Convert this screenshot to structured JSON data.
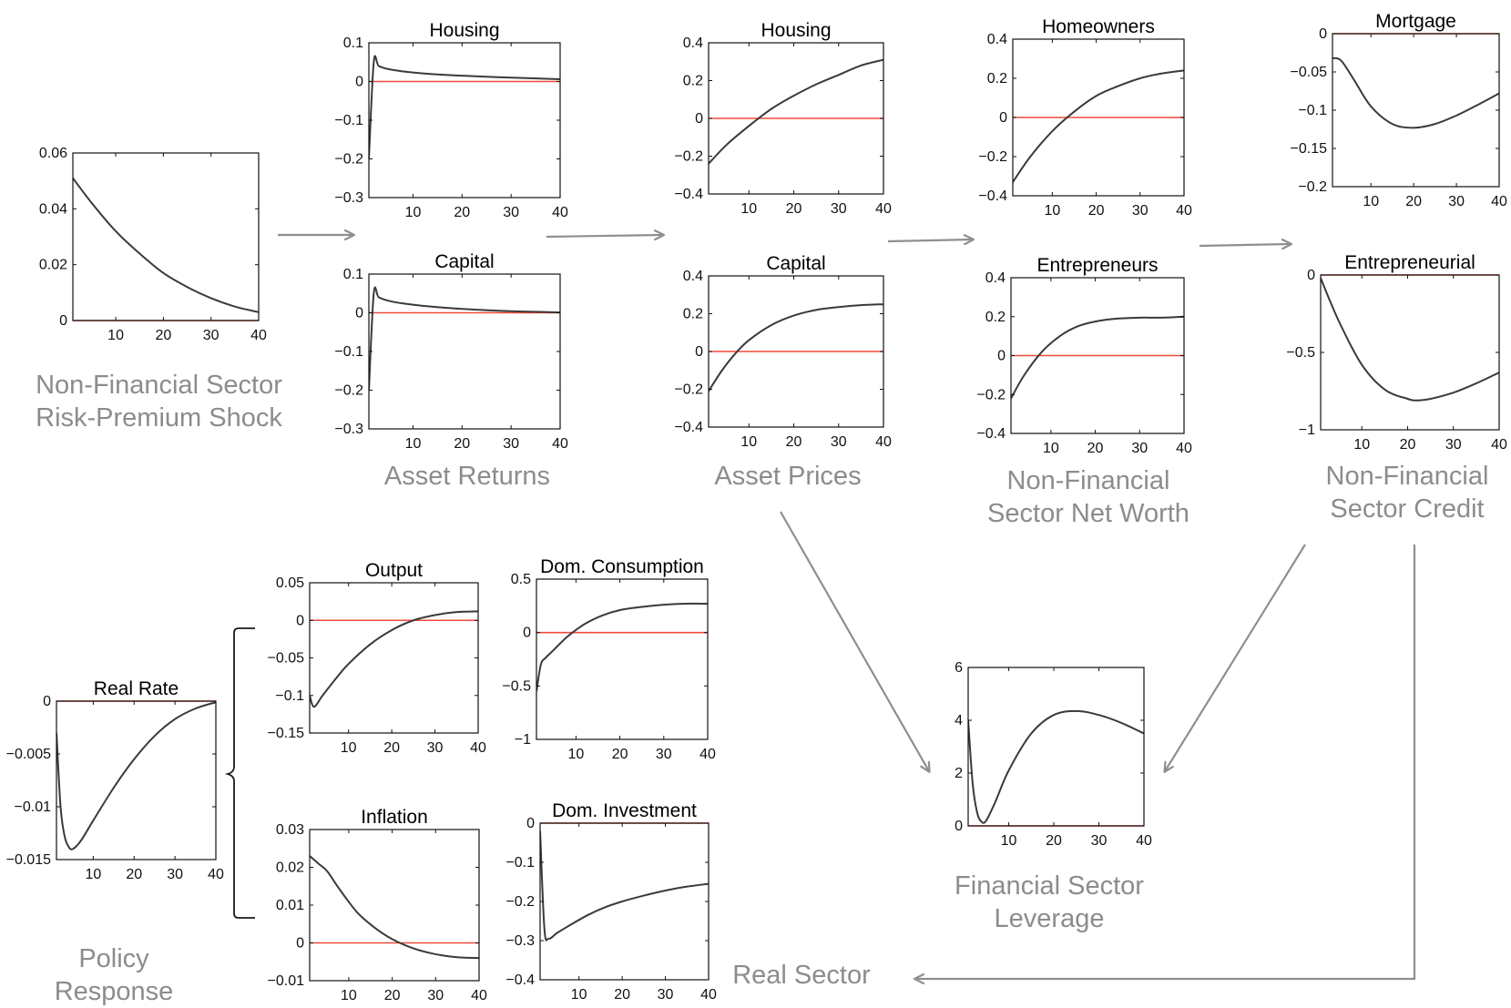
{
  "colors": {
    "curve": "#3a3a3a",
    "zero_line": "#f04a3a",
    "arrow": "#8f8f8f",
    "group_label": "#8c8c8c"
  },
  "group_labels": {
    "shock": [
      "Non-Financial Sector",
      "Risk-Premium Shock"
    ],
    "asset_returns": [
      "Asset Returns"
    ],
    "asset_prices": [
      "Asset Prices"
    ],
    "net_worth": [
      "Non-Financial",
      "Sector Net Worth"
    ],
    "credit": [
      "Non-Financial",
      "Sector Credit"
    ],
    "leverage": [
      "Financial Sector",
      "Leverage"
    ],
    "policy": [
      "Policy",
      "Response"
    ],
    "real_sector": [
      "Real Sector"
    ]
  },
  "chart_data": [
    {
      "id": "shock",
      "type": "line",
      "title": "",
      "xlim": [
        1,
        40
      ],
      "ylim": [
        0,
        0.06
      ],
      "xticks": [
        10,
        20,
        30,
        40
      ],
      "yticks": [
        0,
        0.02,
        0.04,
        0.06
      ],
      "yticklabels": [
        "0",
        "0.02",
        "0.04",
        "0.06"
      ],
      "series": [
        {
          "x": [
            1,
            5,
            10,
            15,
            20,
            25,
            30,
            35,
            40
          ],
          "y": [
            0.051,
            0.042,
            0.032,
            0.024,
            0.017,
            0.012,
            0.008,
            0.005,
            0.003
          ]
        }
      ]
    },
    {
      "id": "ret_housing",
      "type": "line",
      "title": "Housing",
      "xlim": [
        1,
        40
      ],
      "ylim": [
        -0.3,
        0.1
      ],
      "xticks": [
        10,
        20,
        30,
        40
      ],
      "yticks": [
        -0.3,
        -0.2,
        -0.1,
        0,
        0.1
      ],
      "yticklabels": [
        "−0.3",
        "−0.2",
        "−0.1",
        "0",
        "0.1"
      ],
      "series": [
        {
          "x": [
            1,
            2,
            3,
            5,
            8,
            12,
            20,
            30,
            40
          ],
          "y": [
            -0.2,
            0.05,
            0.04,
            0.032,
            0.026,
            0.021,
            0.015,
            0.01,
            0.006
          ]
        }
      ]
    },
    {
      "id": "ret_capital",
      "type": "line",
      "title": "Capital",
      "xlim": [
        1,
        40
      ],
      "ylim": [
        -0.3,
        0.1
      ],
      "xticks": [
        10,
        20,
        30,
        40
      ],
      "yticks": [
        -0.3,
        -0.2,
        -0.1,
        0,
        0.1
      ],
      "yticklabels": [
        "−0.3",
        "−0.2",
        "−0.1",
        "0",
        "0.1"
      ],
      "series": [
        {
          "x": [
            1,
            2,
            3,
            5,
            8,
            12,
            20,
            30,
            40
          ],
          "y": [
            -0.2,
            0.05,
            0.04,
            0.031,
            0.024,
            0.018,
            0.01,
            0.004,
            0.001
          ]
        }
      ]
    },
    {
      "id": "price_housing",
      "type": "line",
      "title": "Housing",
      "xlim": [
        1,
        40
      ],
      "ylim": [
        -0.4,
        0.4
      ],
      "xticks": [
        10,
        20,
        30,
        40
      ],
      "yticks": [
        -0.4,
        -0.2,
        0,
        0.2,
        0.4
      ],
      "yticklabels": [
        "−0.4",
        "−0.2",
        "0",
        "0.2",
        "0.4"
      ],
      "series": [
        {
          "x": [
            1,
            5,
            10,
            15,
            20,
            25,
            30,
            35,
            40
          ],
          "y": [
            -0.24,
            -0.14,
            -0.04,
            0.05,
            0.12,
            0.18,
            0.23,
            0.28,
            0.31
          ]
        }
      ]
    },
    {
      "id": "price_capital",
      "type": "line",
      "title": "Capital",
      "xlim": [
        1,
        40
      ],
      "ylim": [
        -0.4,
        0.4
      ],
      "xticks": [
        10,
        20,
        30,
        40
      ],
      "yticks": [
        -0.4,
        -0.2,
        0,
        0.2,
        0.4
      ],
      "yticklabels": [
        "−0.4",
        "−0.2",
        "0",
        "0.2",
        "0.4"
      ],
      "series": [
        {
          "x": [
            1,
            4,
            7,
            10,
            15,
            20,
            25,
            30,
            35,
            40
          ],
          "y": [
            -0.21,
            -0.1,
            -0.01,
            0.06,
            0.14,
            0.19,
            0.22,
            0.235,
            0.245,
            0.25
          ]
        }
      ]
    },
    {
      "id": "nw_homeowners",
      "type": "line",
      "title": "Homeowners",
      "xlim": [
        1,
        40
      ],
      "ylim": [
        -0.4,
        0.4
      ],
      "xticks": [
        10,
        20,
        30,
        40
      ],
      "yticks": [
        -0.4,
        -0.2,
        0,
        0.2,
        0.4
      ],
      "yticklabels": [
        "−0.4",
        "−0.2",
        "0",
        "0.2",
        "0.4"
      ],
      "series": [
        {
          "x": [
            1,
            5,
            10,
            15,
            20,
            25,
            30,
            35,
            40
          ],
          "y": [
            -0.33,
            -0.2,
            -0.07,
            0.03,
            0.11,
            0.16,
            0.2,
            0.225,
            0.24
          ]
        }
      ]
    },
    {
      "id": "nw_entrepreneurs",
      "type": "line",
      "title": "Entrepreneurs",
      "xlim": [
        1,
        40
      ],
      "ylim": [
        -0.4,
        0.4
      ],
      "xticks": [
        10,
        20,
        30,
        40
      ],
      "yticks": [
        -0.4,
        -0.2,
        0,
        0.2,
        0.4
      ],
      "yticklabels": [
        "−0.4",
        "−0.2",
        "0",
        "0.2",
        "0.4"
      ],
      "series": [
        {
          "x": [
            1,
            4,
            8,
            12,
            16,
            20,
            25,
            30,
            35,
            40
          ],
          "y": [
            -0.22,
            -0.1,
            0.02,
            0.1,
            0.15,
            0.175,
            0.19,
            0.195,
            0.195,
            0.2
          ]
        }
      ]
    },
    {
      "id": "credit_mortgage",
      "type": "line",
      "title": "Mortgage",
      "xlim": [
        1,
        40
      ],
      "ylim": [
        -0.2,
        0
      ],
      "xticks": [
        10,
        20,
        30,
        40
      ],
      "yticks": [
        -0.2,
        -0.15,
        -0.1,
        -0.05,
        0
      ],
      "yticklabels": [
        "−0.2",
        "−0.15",
        "−0.1",
        "−0.05",
        "0"
      ],
      "series": [
        {
          "x": [
            1,
            3,
            6,
            10,
            15,
            20,
            25,
            30,
            35,
            40
          ],
          "y": [
            -0.032,
            -0.035,
            -0.06,
            -0.095,
            -0.118,
            -0.123,
            -0.118,
            -0.107,
            -0.093,
            -0.078
          ]
        }
      ]
    },
    {
      "id": "credit_entrepreneurial",
      "type": "line",
      "title": "Entrepreneurial",
      "xlim": [
        1,
        40
      ],
      "ylim": [
        -1,
        0
      ],
      "xticks": [
        10,
        20,
        30,
        40
      ],
      "yticks": [
        -1,
        -0.5,
        0
      ],
      "yticklabels": [
        "−1",
        "−0.5",
        "0"
      ],
      "series": [
        {
          "x": [
            1,
            5,
            10,
            15,
            20,
            22,
            25,
            30,
            35,
            40
          ],
          "y": [
            -0.02,
            -0.3,
            -0.58,
            -0.74,
            -0.8,
            -0.81,
            -0.8,
            -0.76,
            -0.7,
            -0.63
          ]
        }
      ]
    },
    {
      "id": "leverage",
      "type": "line",
      "title": "",
      "xlim": [
        1,
        40
      ],
      "ylim": [
        0,
        6
      ],
      "xticks": [
        10,
        20,
        30,
        40
      ],
      "yticks": [
        0,
        2,
        4,
        6
      ],
      "yticklabels": [
        "0",
        "2",
        "4",
        "6"
      ],
      "series": [
        {
          "x": [
            1,
            2,
            3,
            4,
            5,
            7,
            10,
            15,
            20,
            25,
            30,
            35,
            40
          ],
          "y": [
            4.0,
            1.6,
            0.5,
            0.15,
            0.2,
            0.9,
            2.1,
            3.5,
            4.2,
            4.35,
            4.2,
            3.9,
            3.5
          ]
        }
      ]
    },
    {
      "id": "real_rate",
      "type": "line",
      "title": "Real Rate",
      "xlim": [
        1,
        40
      ],
      "ylim": [
        -0.015,
        0
      ],
      "xticks": [
        10,
        20,
        30,
        40
      ],
      "yticks": [
        -0.015,
        -0.01,
        -0.005,
        0
      ],
      "yticklabels": [
        "−0.015",
        "−0.01",
        "−0.005",
        "0"
      ],
      "series": [
        {
          "x": [
            1,
            2,
            3,
            4,
            5,
            7,
            10,
            15,
            20,
            25,
            30,
            35,
            40
          ],
          "y": [
            -0.003,
            -0.01,
            -0.0128,
            -0.0138,
            -0.014,
            -0.0132,
            -0.0113,
            -0.0082,
            -0.0055,
            -0.0033,
            -0.0017,
            -0.0007,
            -0.0001
          ]
        }
      ]
    },
    {
      "id": "output",
      "type": "line",
      "title": "Output",
      "xlim": [
        1,
        40
      ],
      "ylim": [
        -0.15,
        0.05
      ],
      "xticks": [
        10,
        20,
        30,
        40
      ],
      "yticks": [
        -0.15,
        -0.1,
        -0.05,
        0,
        0.05
      ],
      "yticklabels": [
        "−0.15",
        "−0.1",
        "−0.05",
        "0",
        "0.05"
      ],
      "series": [
        {
          "x": [
            1,
            2,
            4,
            7,
            10,
            15,
            20,
            25,
            30,
            35,
            40
          ],
          "y": [
            -0.1,
            -0.115,
            -0.1,
            -0.078,
            -0.058,
            -0.032,
            -0.013,
            0.0,
            0.007,
            0.011,
            0.012
          ]
        }
      ]
    },
    {
      "id": "consumption",
      "type": "line",
      "title": "Dom. Consumption",
      "xlim": [
        1,
        40
      ],
      "ylim": [
        -1,
        0.5
      ],
      "xticks": [
        10,
        20,
        30,
        40
      ],
      "yticks": [
        -1,
        -0.5,
        0,
        0.5
      ],
      "yticklabels": [
        "−1",
        "−0.5",
        "0",
        "0.5"
      ],
      "series": [
        {
          "x": [
            1,
            2,
            3,
            5,
            8,
            12,
            16,
            20,
            25,
            30,
            35,
            40
          ],
          "y": [
            -0.55,
            -0.3,
            -0.24,
            -0.16,
            -0.04,
            0.08,
            0.16,
            0.21,
            0.24,
            0.26,
            0.27,
            0.27
          ]
        }
      ]
    },
    {
      "id": "inflation",
      "type": "line",
      "title": "Inflation",
      "xlim": [
        1,
        40
      ],
      "ylim": [
        -0.01,
        0.03
      ],
      "xticks": [
        10,
        20,
        30,
        40
      ],
      "yticks": [
        -0.01,
        0,
        0.01,
        0.02,
        0.03
      ],
      "yticklabels": [
        "−0.01",
        "0",
        "0.01",
        "0.02",
        "0.03"
      ],
      "series": [
        {
          "x": [
            1,
            3,
            5,
            8,
            12,
            16,
            20,
            25,
            30,
            35,
            40
          ],
          "y": [
            0.023,
            0.021,
            0.019,
            0.014,
            0.008,
            0.004,
            0.001,
            -0.0015,
            -0.003,
            -0.0038,
            -0.004
          ]
        }
      ]
    },
    {
      "id": "investment",
      "type": "line",
      "title": "Dom. Investment",
      "xlim": [
        1,
        40
      ],
      "ylim": [
        -0.4,
        0
      ],
      "xticks": [
        10,
        20,
        30,
        40
      ],
      "yticks": [
        -0.4,
        -0.3,
        -0.2,
        -0.1,
        0
      ],
      "yticklabels": [
        "−0.4",
        "−0.3",
        "−0.2",
        "−0.1",
        "0"
      ],
      "series": [
        {
          "x": [
            1,
            2,
            3,
            5,
            8,
            12,
            16,
            20,
            25,
            30,
            35,
            40
          ],
          "y": [
            -0.02,
            -0.27,
            -0.295,
            -0.28,
            -0.26,
            -0.235,
            -0.215,
            -0.2,
            -0.185,
            -0.172,
            -0.162,
            -0.155
          ]
        }
      ]
    }
  ]
}
